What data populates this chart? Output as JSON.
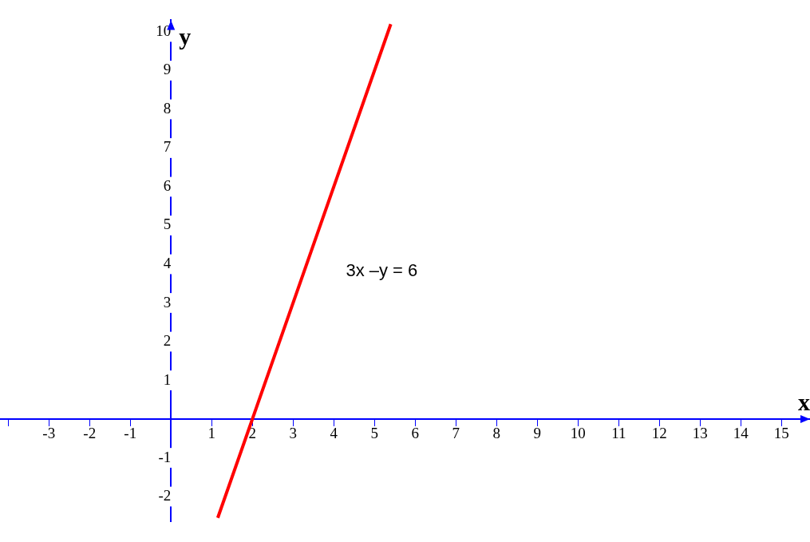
{
  "chart_data": {
    "type": "line",
    "xlabel": "x",
    "ylabel": "y",
    "x": [
      1.15,
      5.4
    ],
    "series": [
      {
        "color": "#ff0000",
        "values": [
          -2.55,
          10.2
        ]
      }
    ],
    "xlim": [
      -4.2,
      15.7
    ],
    "ylim": [
      -2.65,
      10.3
    ],
    "xticks": [
      {
        "value": -4,
        "label": null
      },
      -3,
      -2,
      -1,
      1,
      2,
      3,
      4,
      5,
      6,
      7,
      8,
      9,
      10,
      11,
      12,
      13,
      14,
      15
    ],
    "yticks": [
      -2,
      -1,
      1,
      2,
      3,
      4,
      5,
      6,
      7,
      8,
      9,
      10
    ],
    "grid": false,
    "legend": false,
    "marker": "none",
    "line_style": "solid",
    "annotations": [
      "3x –y = 6"
    ]
  }
}
